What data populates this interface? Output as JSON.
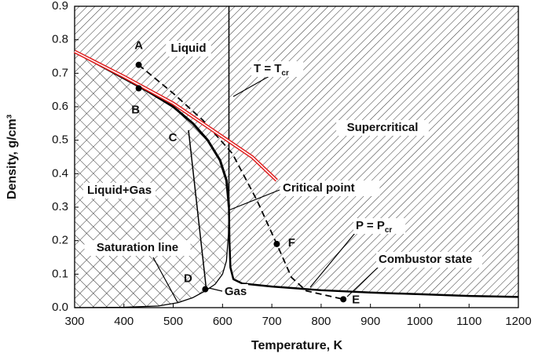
{
  "chart_data": {
    "type": "line",
    "x_label": "Temperature, K",
    "y_label": "Density, g/cm³",
    "xlim": [
      300,
      1200
    ],
    "ylim": [
      0,
      0.9
    ],
    "xticks": [
      300,
      400,
      500,
      600,
      700,
      800,
      900,
      1000,
      1100,
      1200
    ],
    "yticks": [
      {
        "value": 0,
        "label": "0.0"
      },
      0.1,
      0.2,
      0.3,
      0.4,
      0.5,
      0.6,
      0.7,
      0.8,
      0.9
    ],
    "series": [
      {
        "color": "#000000",
        "width": 3,
        "dash": false,
        "x": [
          300,
          350,
          400,
          450,
          500,
          540,
          570,
          595,
          608,
          612,
          613
        ],
        "values": [
          0.765,
          0.725,
          0.685,
          0.645,
          0.6,
          0.55,
          0.5,
          0.44,
          0.38,
          0.32,
          0.3
        ]
      },
      {
        "color": "#000000",
        "width": 1.3,
        "dash": false,
        "x": [
          613,
          612,
          608,
          600,
          585,
          565,
          540,
          510,
          470,
          400,
          300
        ],
        "values": [
          0.3,
          0.22,
          0.14,
          0.1,
          0.07,
          0.05,
          0.03,
          0.015,
          0.005,
          0.001,
          0
        ]
      },
      {
        "color": "#000000",
        "width": 2.5,
        "dash": false,
        "x": [
          613,
          614,
          616,
          622,
          640,
          700,
          800,
          900,
          1000,
          1100,
          1200
        ],
        "values": [
          0.3,
          0.2,
          0.12,
          0.085,
          0.072,
          0.063,
          0.052,
          0.045,
          0.04,
          0.035,
          0.032
        ]
      },
      {
        "color": "#000000",
        "width": 1.5,
        "dash": false,
        "x": [
          613,
          613
        ],
        "values": [
          0.3,
          0.9
        ]
      },
      {
        "color": "#000000",
        "width": 1.5,
        "dash": false,
        "x": [
          531,
          567
        ],
        "values": [
          0.53,
          0.056
        ]
      },
      {
        "color": "#000000",
        "width": 1.8,
        "dash": true,
        "x": [
          430,
          500,
          560,
          620,
          670,
          710,
          740,
          770,
          845
        ],
        "values": [
          0.725,
          0.64,
          0.56,
          0.46,
          0.32,
          0.19,
          0.09,
          0.05,
          0.025
        ]
      },
      {
        "color": "#e02020",
        "width": 4.5,
        "dash": false,
        "hollow": true,
        "x": [
          300,
          400,
          500,
          600,
          660,
          710
        ],
        "values": [
          0.765,
          0.69,
          0.61,
          0.51,
          0.45,
          0.38
        ]
      }
    ],
    "points": [
      {
        "label": "A",
        "x": 430,
        "y": 0.725,
        "dot": true
      },
      {
        "label": "B",
        "x": 430,
        "y": 0.655,
        "dot": true
      },
      {
        "label": "C",
        "x": 531,
        "y": 0.53,
        "dot": false
      },
      {
        "label": "D",
        "x": 565,
        "y": 0.055,
        "dot": true
      },
      {
        "label": "E",
        "x": 845,
        "y": 0.025,
        "dot": true
      },
      {
        "label": "F",
        "x": 710,
        "y": 0.19,
        "dot": true
      }
    ],
    "annotations": [
      {
        "text": "Liquid"
      },
      {
        "text": "Supercritical"
      },
      {
        "text": "Liquid+Gas"
      },
      {
        "text": "Gas"
      },
      {
        "text": "Saturation line"
      },
      {
        "text": "Critical point"
      },
      {
        "text": "Combustor state"
      },
      {
        "text": "T = T",
        "sub": "cr"
      },
      {
        "text": "P = P",
        "sub": "cr"
      }
    ]
  }
}
